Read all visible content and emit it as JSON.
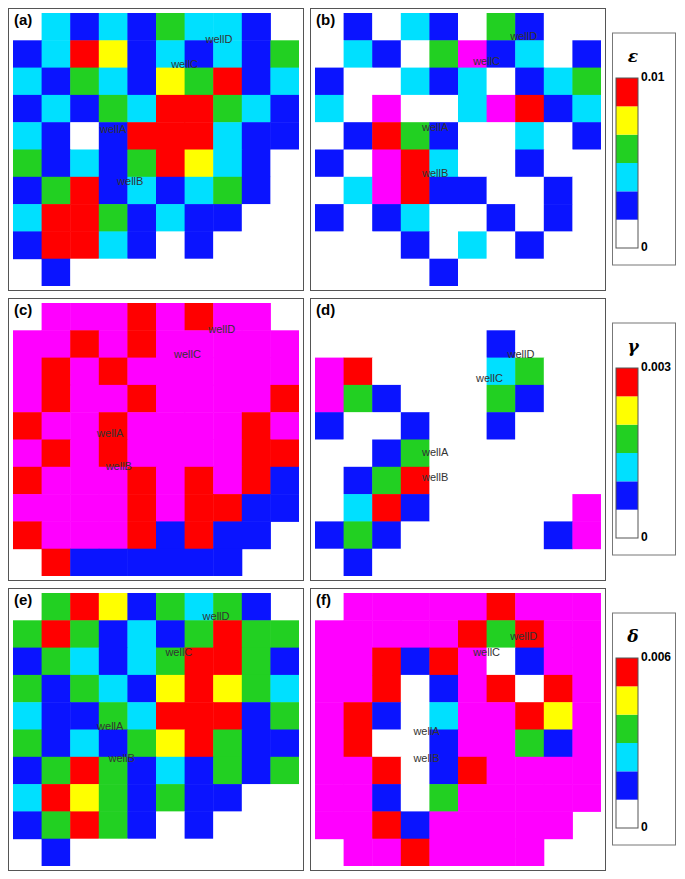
{
  "chart_data": [
    {
      "type": "heatmap",
      "label": "(a)",
      "xlim": [
        0,
        10
      ],
      "ylim": [
        0,
        10
      ],
      "tick_labels": false,
      "cells": [
        [
          null,
          0.0042,
          0.0025,
          0.0042,
          0.0025,
          0.0058,
          0.0042,
          0.0042,
          0.0025,
          null
        ],
        [
          0.0025,
          0.0042,
          0.0092,
          0.0075,
          0.0025,
          0.0042,
          0.0025,
          0.0042,
          0.0025,
          0.0058
        ],
        [
          0.0042,
          0.0025,
          0.0058,
          0.0042,
          0.0025,
          0.0075,
          0.0058,
          0.0092,
          0.0025,
          0.0042
        ],
        [
          0.0025,
          0.0042,
          0.0025,
          0.0058,
          0.0042,
          0.0092,
          0.0092,
          0.0058,
          0.0042,
          0.0025
        ],
        [
          0.0042,
          0.0025,
          0.0008,
          0.0025,
          0.0092,
          0.0092,
          0.0092,
          0.0042,
          0.0025,
          0.0025
        ],
        [
          0.0058,
          0.0025,
          0.0042,
          0.0025,
          0.0058,
          0.0092,
          0.0075,
          0.0042,
          0.0025,
          0.0008
        ],
        [
          0.0025,
          0.0058,
          0.0092,
          0.0025,
          0.0042,
          0.0025,
          0.0042,
          0.0058,
          0.0025,
          0.0008
        ],
        [
          0.0042,
          0.0092,
          0.0092,
          0.0058,
          0.0025,
          0.0042,
          0.0025,
          0.0025,
          0.0008,
          0.0008
        ],
        [
          0.0025,
          0.0092,
          0.0092,
          0.0042,
          0.0025,
          0.0008,
          0.0025,
          0.0008,
          0.0008,
          null
        ],
        [
          null,
          0.0025,
          0.0008,
          0.0008,
          0.0008,
          0.0008,
          0.0008,
          0.0008,
          null,
          null
        ]
      ],
      "wells": [
        {
          "name": "wellD",
          "x": 7.2,
          "y": 1.0
        },
        {
          "name": "wellC",
          "x": 6.0,
          "y": 1.9
        },
        {
          "name": "wellA",
          "x": 3.5,
          "y": 4.3
        },
        {
          "name": "wellB",
          "x": 4.1,
          "y": 6.2
        }
      ]
    },
    {
      "type": "heatmap",
      "label": "(b)",
      "xlim": [
        0,
        10
      ],
      "ylim": [
        0,
        10
      ],
      "tick_labels": false,
      "cells": [
        [
          null,
          0.0025,
          0.0008,
          0.0042,
          0.0025,
          0.0008,
          0.0058,
          0.0025,
          0.0008,
          null
        ],
        [
          0.0008,
          0.0042,
          0.0025,
          0.0008,
          0.0058,
          0.011,
          0.0025,
          0.0042,
          0.0008,
          0.0025
        ],
        [
          0.0025,
          0.0008,
          0.0008,
          0.0042,
          0.0025,
          0.0042,
          0.0008,
          0.0025,
          0.0042,
          0.0058
        ],
        [
          0.0042,
          0.0008,
          0.011,
          0.0008,
          0.0008,
          0.0042,
          0.011,
          0.0092,
          0.0025,
          0.0042
        ],
        [
          0.0008,
          0.0025,
          0.0092,
          0.0058,
          0.0025,
          0.0008,
          0.0008,
          0.0042,
          0.0008,
          0.0025
        ],
        [
          0.0025,
          0.0008,
          0.011,
          0.0092,
          0.0042,
          0.0008,
          0.0008,
          0.0025,
          0.0008,
          0.0008
        ],
        [
          0.0008,
          0.0042,
          0.011,
          0.0092,
          0.0025,
          0.0025,
          0.0008,
          0.0008,
          0.0025,
          0.0008
        ],
        [
          0.0025,
          0.0008,
          0.0025,
          0.0042,
          0.0008,
          0.0008,
          0.0025,
          0.0008,
          0.0025,
          0.0008
        ],
        [
          0.0008,
          0.0008,
          0.0008,
          0.0025,
          0.0008,
          0.0042,
          0.0008,
          0.0025,
          0.0008,
          null
        ],
        [
          null,
          0.0008,
          0.0008,
          0.0008,
          0.0025,
          0.0008,
          0.0008,
          0.0008,
          null,
          null
        ]
      ],
      "wells": [
        {
          "name": "wellD",
          "x": 7.3,
          "y": 0.9
        },
        {
          "name": "wellC",
          "x": 6.0,
          "y": 1.8
        },
        {
          "name": "wellA",
          "x": 4.2,
          "y": 4.2
        },
        {
          "name": "wellB",
          "x": 4.2,
          "y": 5.9
        }
      ]
    },
    {
      "type": "heatmap",
      "label": "(c)",
      "xlim": [
        0,
        10
      ],
      "ylim": [
        0,
        10
      ],
      "tick_labels": false,
      "cells": [
        [
          null,
          0.0092,
          0.0058,
          0.0042,
          0.0025,
          0.0042,
          0.0025,
          0.0058,
          0.011,
          null
        ],
        [
          0.0092,
          0.0058,
          0.0025,
          0.0042,
          0.0025,
          0.0058,
          0.0042,
          0.0092,
          0.011,
          0.011
        ],
        [
          0.0058,
          0.0025,
          0.0042,
          0.0025,
          0.0042,
          0.0075,
          0.0092,
          0.0092,
          0.0058,
          0.0042
        ],
        [
          0.0042,
          0.0025,
          0.0058,
          0.0042,
          0.0025,
          0.0092,
          0.0092,
          0.0075,
          0.0042,
          0.0025
        ],
        [
          0.0025,
          0.0058,
          0.0042,
          0.0025,
          0.0042,
          0.0092,
          0.0092,
          0.0092,
          0.0025,
          0.0042
        ],
        [
          0.0058,
          0.0025,
          0.0075,
          0.0025,
          0.0058,
          0.0075,
          0.0092,
          0.0042,
          0.0025,
          0.0025
        ],
        [
          0.0025,
          0.0058,
          0.0092,
          0.0042,
          0.0025,
          0.0042,
          0.0025,
          0.0058,
          0.0025,
          0.0008
        ],
        [
          0.0042,
          0.0092,
          0.0092,
          0.0058,
          0.0025,
          0.0042,
          0.0025,
          0.0025,
          0.0008,
          0.0008
        ],
        [
          0.0025,
          0.0058,
          0.0092,
          0.0042,
          0.0025,
          0.0008,
          0.0025,
          0.0008,
          0.0008,
          null
        ],
        [
          null,
          0.0025,
          0.0008,
          0.0008,
          0.0008,
          0.0008,
          0.0008,
          0.0008,
          null,
          null
        ]
      ],
      "wells": [
        {
          "name": "wellD",
          "x": 7.3,
          "y": 1.0
        },
        {
          "name": "wellC",
          "x": 6.1,
          "y": 1.9
        },
        {
          "name": "wellA",
          "x": 3.4,
          "y": 4.8
        },
        {
          "name": "wellB",
          "x": 3.7,
          "y": 6.0
        }
      ]
    },
    {
      "type": "heatmap",
      "label": "(d)",
      "xlim": [
        0,
        10
      ],
      "ylim": [
        0,
        10
      ],
      "tick_labels": false,
      "cells": [
        [
          null,
          null,
          null,
          null,
          0.0002,
          0.0002,
          0.0002,
          0.0002,
          null,
          null
        ],
        [
          null,
          null,
          0.0002,
          0.0002,
          0.0002,
          0.0002,
          0.0007,
          0.0002,
          0.0002,
          null
        ],
        [
          0.0035,
          0.0027,
          0.0002,
          0.0002,
          0.0002,
          0.0002,
          0.0012,
          0.0017,
          0.0002,
          0.0002
        ],
        [
          0.0035,
          0.0017,
          0.0007,
          0.0002,
          0.0002,
          0.0002,
          0.0017,
          0.0007,
          0.0002,
          0.0002
        ],
        [
          0.0007,
          0.0002,
          0.0002,
          0.0007,
          0.0002,
          0.0002,
          0.0007,
          0.0002,
          0.0002,
          0.0002
        ],
        [
          0.0002,
          0.0002,
          0.0007,
          0.0017,
          0.0002,
          0.0002,
          0.0002,
          0.0002,
          0.0002,
          0.0002
        ],
        [
          0.0002,
          0.0007,
          0.0017,
          0.0027,
          0.0002,
          0.0002,
          0.0002,
          0.0002,
          0.0002,
          0.0002
        ],
        [
          0.0002,
          0.0012,
          0.0027,
          0.0007,
          0.0002,
          0.0002,
          0.0002,
          0.0002,
          0.0002,
          0.0035
        ],
        [
          0.0007,
          0.0017,
          0.0007,
          0.0002,
          null,
          0.0002,
          0.0002,
          0.0002,
          0.0007,
          0.0035
        ],
        [
          0.0002,
          0.0007,
          0.0002,
          null,
          null,
          null,
          null,
          null,
          null,
          null
        ]
      ],
      "wells": [
        {
          "name": "wellD",
          "x": 7.2,
          "y": 1.9
        },
        {
          "name": "wellC",
          "x": 6.1,
          "y": 2.8
        },
        {
          "name": "wellA",
          "x": 4.2,
          "y": 5.5
        },
        {
          "name": "wellB",
          "x": 4.2,
          "y": 6.4
        }
      ]
    },
    {
      "type": "heatmap",
      "label": "(e)",
      "xlim": [
        0,
        10
      ],
      "ylim": [
        0,
        10
      ],
      "tick_labels": false,
      "cells": [
        [
          null,
          0.0035,
          0.0055,
          0.0045,
          0.0015,
          0.0035,
          0.0025,
          0.0035,
          0.0015,
          null
        ],
        [
          0.0035,
          0.0055,
          0.0035,
          0.0015,
          0.0025,
          0.0015,
          0.0035,
          0.0055,
          0.0035,
          0.0035
        ],
        [
          0.0015,
          0.0035,
          0.0025,
          0.0015,
          0.0025,
          0.0035,
          0.0055,
          0.0055,
          0.0035,
          0.0015
        ],
        [
          0.0035,
          0.0015,
          0.0035,
          0.0025,
          0.0015,
          0.0045,
          0.0055,
          0.0045,
          0.0035,
          0.0025
        ],
        [
          0.0025,
          0.0015,
          0.0015,
          0.0035,
          0.0025,
          0.0055,
          0.0055,
          0.0055,
          0.0015,
          0.0035
        ],
        [
          0.0035,
          0.0015,
          0.0025,
          0.0015,
          0.0035,
          0.0045,
          0.0055,
          0.0035,
          0.0015,
          0.0015
        ],
        [
          0.0015,
          0.0035,
          0.0055,
          0.0035,
          0.0015,
          0.0025,
          0.0015,
          0.0035,
          0.0015,
          0.0035
        ],
        [
          0.0025,
          0.0055,
          0.0045,
          0.0035,
          0.0015,
          0.0035,
          0.0015,
          0.0015,
          0.0005,
          0.0005
        ],
        [
          0.0015,
          0.0035,
          0.0055,
          0.0035,
          0.0015,
          0.0005,
          0.0015,
          0.0005,
          0.0005,
          null
        ],
        [
          null,
          0.0015,
          0.0005,
          0.0005,
          0.0005,
          0.0005,
          0.0005,
          0.0005,
          null,
          null
        ]
      ],
      "wells": [
        {
          "name": "wellD",
          "x": 7.1,
          "y": 0.9
        },
        {
          "name": "wellC",
          "x": 5.8,
          "y": 2.2
        },
        {
          "name": "wellA",
          "x": 3.4,
          "y": 4.9
        },
        {
          "name": "wellB",
          "x": 3.8,
          "y": 6.1
        }
      ]
    },
    {
      "type": "heatmap",
      "label": "(f)",
      "xlim": [
        0,
        10
      ],
      "ylim": [
        0,
        10
      ],
      "tick_labels": false,
      "cells": [
        [
          null,
          0.007,
          0.007,
          0.007,
          0.007,
          0.007,
          0.0055,
          0.007,
          0.007,
          0.007
        ],
        [
          0.007,
          0.007,
          0.007,
          0.007,
          0.007,
          0.0055,
          0.0035,
          0.0055,
          0.007,
          0.007
        ],
        [
          0.007,
          0.007,
          0.0055,
          0.0015,
          0.0055,
          0.007,
          0.0005,
          0.0015,
          0.007,
          0.007
        ],
        [
          0.007,
          0.007,
          0.0055,
          0.0005,
          0.0015,
          0.007,
          0.0055,
          0.0005,
          0.0055,
          0.007
        ],
        [
          0.007,
          0.0055,
          0.0015,
          0.0005,
          0.0025,
          0.007,
          0.007,
          0.0055,
          0.0045,
          0.007
        ],
        [
          0.007,
          0.0055,
          0.0005,
          0.0005,
          0.0015,
          0.007,
          0.007,
          0.0035,
          0.0015,
          0.007
        ],
        [
          0.007,
          0.007,
          0.0055,
          0.0005,
          0.0015,
          0.0055,
          0.007,
          0.007,
          0.007,
          0.007
        ],
        [
          0.007,
          0.007,
          0.0015,
          0.0005,
          0.0035,
          0.007,
          0.007,
          0.007,
          0.007,
          0.007
        ],
        [
          0.007,
          0.007,
          0.0055,
          0.0015,
          0.007,
          0.007,
          0.007,
          0.007,
          0.007,
          null
        ],
        [
          null,
          0.007,
          0.007,
          0.0055,
          0.007,
          0.007,
          0.007,
          0.007,
          null,
          null
        ]
      ],
      "wells": [
        {
          "name": "wellD",
          "x": 7.3,
          "y": 1.6
        },
        {
          "name": "wellC",
          "x": 6.0,
          "y": 2.2
        },
        {
          "name": "wellA",
          "x": 3.9,
          "y": 5.1
        },
        {
          "name": "wellB",
          "x": 3.9,
          "y": 6.1
        }
      ]
    }
  ],
  "colorbars": [
    {
      "title": "ε",
      "range": [
        0,
        0.01
      ],
      "ticks": [
        0,
        0.01
      ],
      "colors": [
        "#ffffff",
        "#0a14ff",
        "#00e0ff",
        "#22d022",
        "#ffff00",
        "#ff0000"
      ],
      "over_color": "#ff00ff"
    },
    {
      "title": "γ",
      "range": [
        0,
        0.003
      ],
      "ticks": [
        0,
        0.003
      ],
      "colors": [
        "#ffffff",
        "#0a14ff",
        "#00e0ff",
        "#22d022",
        "#ffff00",
        "#ff0000"
      ],
      "over_color": "#ff00ff"
    },
    {
      "title": "δ",
      "range": [
        0,
        0.006
      ],
      "ticks": [
        0,
        0.006
      ],
      "colors": [
        "#ffffff",
        "#0a14ff",
        "#00e0ff",
        "#22d022",
        "#ffff00",
        "#ff0000"
      ],
      "over_color": "#ff00ff"
    }
  ]
}
